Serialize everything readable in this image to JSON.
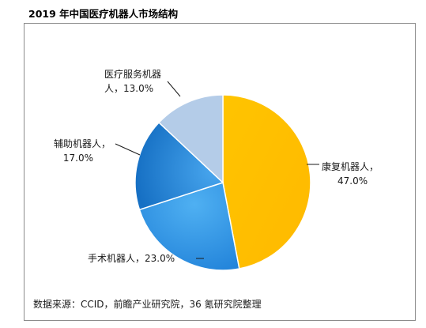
{
  "title": "2019 年中国医疗机器人市场结构",
  "source": "数据来源：CCID，前瞻产业研究院，36 氪研究院整理",
  "chart_data": {
    "type": "pie",
    "title": "2019 年中国医疗机器人市场结构",
    "slices": [
      {
        "label": "康复机器人，",
        "value": 47.0,
        "pct_text": "47.0%",
        "color": "#FFC000"
      },
      {
        "label": "手术机器人，",
        "value": 23.0,
        "pct_text": "23.0%",
        "color": "#2E8FE0"
      },
      {
        "label": "辅助机器人，",
        "value": 17.0,
        "pct_text": "17.0%",
        "color": "#1F7FD0"
      },
      {
        "label": "医疗服务机器",
        "label2": "人，",
        "value": 13.0,
        "pct_text": "13.0%",
        "color": "#B4CCE8"
      }
    ]
  }
}
